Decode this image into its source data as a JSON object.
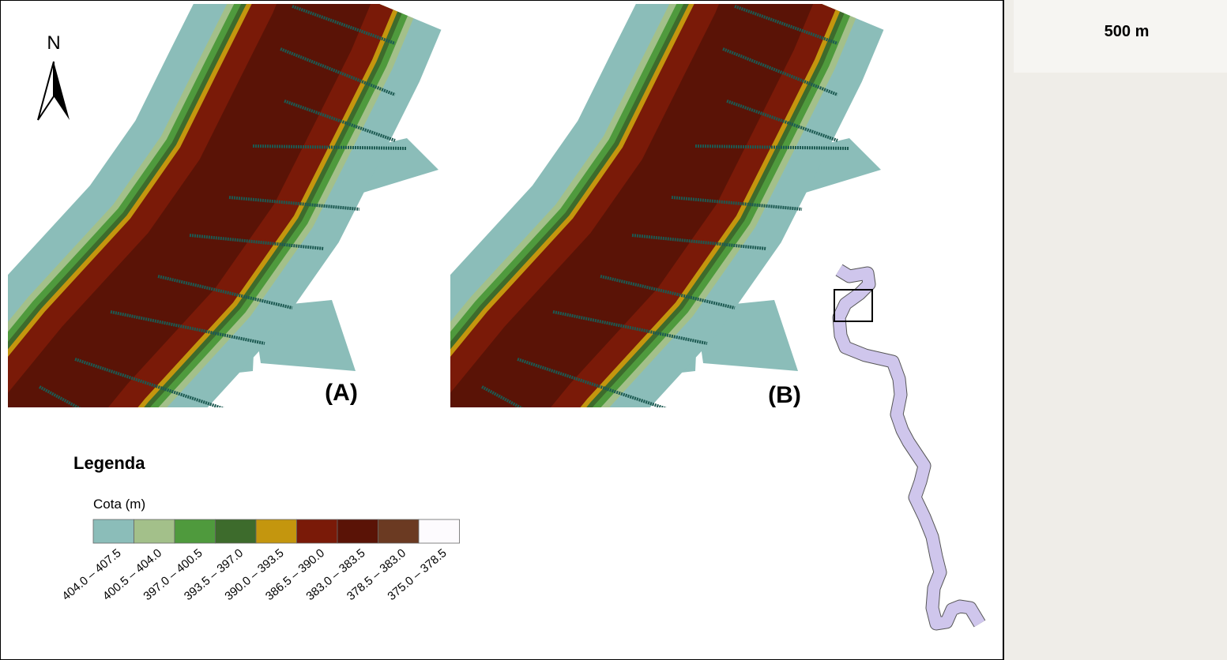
{
  "north": "N",
  "panels": [
    {
      "label": "(A)"
    },
    {
      "label": "(B)"
    }
  ],
  "legend": {
    "title": "Legenda",
    "subtitle": "Cota (m)",
    "items": [
      {
        "label": "404.0 – 407.5",
        "color": "#8bbdb9"
      },
      {
        "label": "400.5 – 404.0",
        "color": "#a3c08a"
      },
      {
        "label": "397.0 – 400.5",
        "color": "#4f9a3d"
      },
      {
        "label": "393.5 – 397.0",
        "color": "#3d6b2c"
      },
      {
        "label": "390.0 – 393.5",
        "color": "#c4960e"
      },
      {
        "label": "386.5 – 390.0",
        "color": "#7a1a08"
      },
      {
        "label": "383.0 – 383.5",
        "color": "#5a1306"
      },
      {
        "label": "378.5 – 383.0",
        "color": "#6b3a22"
      },
      {
        "label": "375.0 – 378.5",
        "color": "#fdfbfe"
      }
    ]
  },
  "scale": "500 m"
}
